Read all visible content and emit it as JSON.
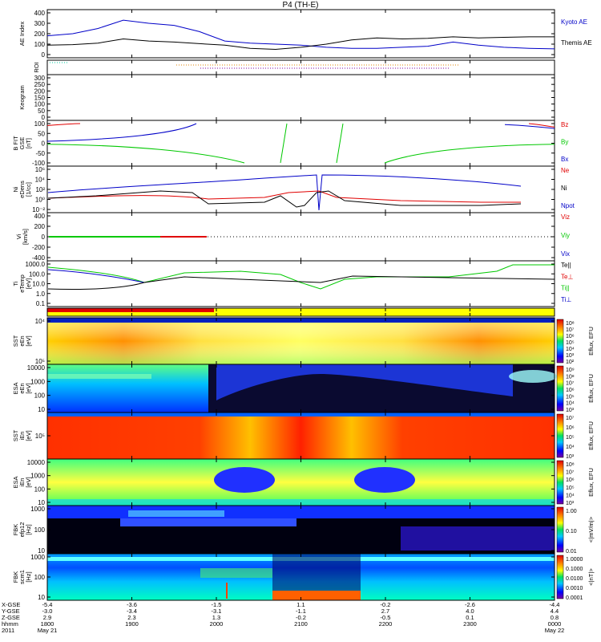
{
  "title": "P4 (TH-E)",
  "colors": {
    "red": "#e00000",
    "green": "#00c800",
    "blue": "#0000c8",
    "black": "#000000"
  },
  "chart_data": {
    "type": "line",
    "panels": [
      {
        "id": "ae",
        "ylabel": [
          "AE Index"
        ],
        "yticks": [
          "400",
          "300",
          "200",
          "100",
          "0"
        ],
        "legend": [
          {
            "label": "Kyoto AE",
            "color": "#0000c8"
          },
          {
            "label": "Themis AE",
            "color": "#000000"
          }
        ],
        "series": [
          {
            "name": "Kyoto AE",
            "color": "#0000c8",
            "t": [
              0,
              0.05,
              0.1,
              0.15,
              0.2,
              0.25,
              0.3,
              0.35,
              0.4,
              0.45,
              0.5,
              0.55,
              0.6,
              0.65,
              0.7,
              0.75,
              0.8,
              0.85,
              0.9,
              0.95,
              1
            ],
            "values": [
              180,
              200,
              250,
              330,
              300,
              280,
              220,
              130,
              110,
              100,
              90,
              70,
              60,
              60,
              70,
              80,
              120,
              90,
              70,
              60,
              55
            ]
          },
          {
            "name": "Themis AE",
            "color": "#000000",
            "t": [
              0,
              0.05,
              0.1,
              0.15,
              0.2,
              0.25,
              0.3,
              0.35,
              0.4,
              0.45,
              0.5,
              0.55,
              0.6,
              0.65,
              0.7,
              0.75,
              0.8,
              0.85,
              0.9,
              0.95,
              1
            ],
            "values": [
              90,
              95,
              110,
              150,
              130,
              120,
              105,
              90,
              60,
              50,
              70,
              100,
              140,
              160,
              150,
              155,
              170,
              160,
              165,
              170,
              170
            ]
          }
        ]
      },
      {
        "id": "roi",
        "ylabel": [
          "ROI"
        ],
        "yticks": []
      },
      {
        "id": "kp",
        "ylabel": [
          "Keogram"
        ],
        "yticks": [
          "300",
          "250",
          "200",
          "150",
          "100",
          "50",
          "0"
        ]
      },
      {
        "id": "bfield",
        "ylabel": [
          "B FIT",
          "GSE",
          "[nT]"
        ],
        "yticks": [
          "100",
          "50",
          "0",
          "-50",
          "-100"
        ],
        "legend": [
          {
            "label": "Bz",
            "color": "#e00000"
          },
          {
            "label": "By",
            "color": "#00c800"
          },
          {
            "label": "Bx",
            "color": "#0000c8"
          }
        ]
      },
      {
        "id": "density",
        "ylabel": [
          "Ni",
          "eDens",
          "[1/cc]"
        ],
        "yticks": [
          "10⁶",
          "10⁴",
          "10²",
          "10⁰",
          "10⁻²"
        ],
        "legend": [
          {
            "label": "Ne",
            "color": "#e00000"
          },
          {
            "label": "Ni",
            "color": "#000000"
          },
          {
            "label": "Npot",
            "color": "#0000c8"
          }
        ]
      },
      {
        "id": "velocity",
        "ylabel": [
          "Vi",
          "[km/s]"
        ],
        "yticks": [
          "400",
          "200",
          "0",
          "-200",
          "-400"
        ],
        "legend": [
          {
            "label": "Viz",
            "color": "#e00000"
          },
          {
            "label": "Viy",
            "color": "#00c800"
          },
          {
            "label": "Vix",
            "color": "#0000c8"
          }
        ]
      },
      {
        "id": "temp",
        "ylabel": [
          "Ti",
          "eTemp",
          "[eV]"
        ],
        "yticks": [
          "1000.0",
          "100.0",
          "10.0",
          "1.0",
          "0.1"
        ],
        "legend": [
          {
            "label": "Te||",
            "color": "#000000"
          },
          {
            "label": "Te⊥",
            "color": "#e00000"
          },
          {
            "label": "Ti||",
            "color": "#00c800"
          },
          {
            "label": "Ti⊥",
            "color": "#0000c8"
          }
        ]
      },
      {
        "id": "mode",
        "ylabel": [],
        "yticks": []
      },
      {
        "id": "sst_e",
        "ylabel": [
          "SST",
          "eEn",
          "[eV]"
        ],
        "yticks": [
          "10⁴",
          "10⁵"
        ],
        "cbar_label": "Eflux, EFU",
        "cbar_ticks": [
          "10⁸",
          "10⁷",
          "10⁶",
          "10⁵",
          "10⁴",
          "10³",
          "10²"
        ]
      },
      {
        "id": "esa_e",
        "ylabel": [
          "ESA",
          "eEn",
          "[eV]"
        ],
        "yticks": [
          "10000",
          "1000",
          "100",
          "10"
        ],
        "cbar_label": "Eflux, EFU",
        "cbar_ticks": [
          "10⁹",
          "10⁸",
          "10⁷",
          "10⁶",
          "10⁵",
          "10⁴",
          "10³"
        ]
      },
      {
        "id": "sst_i",
        "ylabel": [
          "SST",
          "iEn",
          "[eV]"
        ],
        "yticks": [
          "10⁵"
        ],
        "cbar_label": "Eflux, EFU",
        "cbar_ticks": [
          "10⁷",
          "10⁶",
          "10⁵",
          "10⁴",
          "10³"
        ]
      },
      {
        "id": "esa_i",
        "ylabel": [
          "ESA",
          "iEn",
          "[eV]"
        ],
        "yticks": [
          "10000",
          "1000",
          "100",
          "10"
        ],
        "cbar_label": "Eflux, EFU",
        "cbar_ticks": [
          "10⁸",
          "10⁷",
          "10⁶",
          "10⁵",
          "10⁴",
          "10³"
        ]
      },
      {
        "id": "fbk_e",
        "ylabel": [
          "FBK",
          "efp12",
          "[Hz]"
        ],
        "yticks": [
          "1000",
          "100",
          "10"
        ],
        "cbar_label": "<|mV/m|>",
        "cbar_ticks": [
          "1.00",
          "0.10",
          "0.01"
        ]
      },
      {
        "id": "fbk_b",
        "ylabel": [
          "FBK",
          "scm1",
          "[Hz]"
        ],
        "yticks": [
          "1000",
          "100",
          "10"
        ],
        "cbar_label": "<|nT|>",
        "cbar_ticks": [
          "1.0000",
          "0.1000",
          "0.0100",
          "0.0010",
          "0.0001"
        ]
      }
    ],
    "x_axis": {
      "row_labels": [
        "X-GSE",
        "Y-GSE",
        "Z-GSE",
        "hhmm",
        "2011"
      ],
      "columns": [
        {
          "values": [
            "-5.4",
            "-3.0",
            "2.9",
            "1800",
            "May 21"
          ]
        },
        {
          "values": [
            "-3.6",
            "-3.4",
            "2.3",
            "1900",
            ""
          ]
        },
        {
          "values": [
            "-1.5",
            "-3.1",
            "1.3",
            "2000",
            ""
          ]
        },
        {
          "values": [
            "1.1",
            "-1.1",
            "-0.2",
            "2100",
            ""
          ]
        },
        {
          "values": [
            "-0.2",
            "2.7",
            "-0.5",
            "2200",
            ""
          ]
        },
        {
          "values": [
            "-2.6",
            "4.0",
            "0.1",
            "2300",
            ""
          ]
        },
        {
          "values": [
            "-4.4",
            "4.4",
            "0.8",
            "0000",
            "May 22"
          ]
        }
      ]
    }
  }
}
